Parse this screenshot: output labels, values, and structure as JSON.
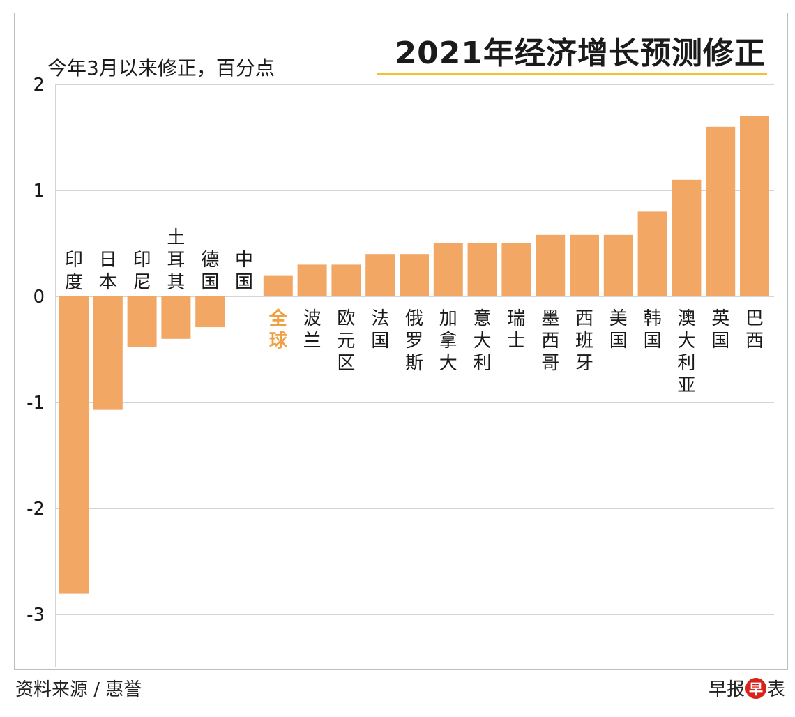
{
  "header": {
    "title": "2021年经济增长预测修正",
    "subtitle": "今年3月以来修正，百分点"
  },
  "footer": {
    "source": "资料来源 / 惠誉",
    "brand_prefix": "早报",
    "brand_logo": "早",
    "brand_suffix": "表"
  },
  "colors": {
    "bar": "#f2a765",
    "highlight_label": "#f0a040",
    "grid": "#a9a9a9",
    "title_underline": "#f2c230"
  },
  "chart_data": {
    "type": "bar",
    "title": "2021年经济增长预测修正",
    "ylabel": "今年3月以来修正，百分点",
    "xlabel": "",
    "ylim": [
      -3.5,
      2
    ],
    "yticks": [
      2,
      1,
      0,
      -1,
      -2,
      -3
    ],
    "ytick_labels": [
      "2",
      "1",
      "0",
      "-1",
      "-2",
      "-3"
    ],
    "grid": true,
    "highlight": "全球",
    "categories": [
      "印度",
      "日本",
      "印尼",
      "土耳其",
      "德国",
      "中国",
      "全球",
      "波兰",
      "欧元区",
      "法国",
      "俄罗斯",
      "加拿大",
      "意大利",
      "瑞士",
      "墨西哥",
      "西班牙",
      "美国",
      "韩国",
      "澳大利亚",
      "英国",
      "巴西"
    ],
    "values": [
      -2.8,
      -1.07,
      -0.48,
      -0.4,
      -0.29,
      0.0,
      0.2,
      0.3,
      0.3,
      0.4,
      0.4,
      0.5,
      0.5,
      0.5,
      0.58,
      0.58,
      0.58,
      0.8,
      1.1,
      1.6,
      1.7
    ]
  }
}
